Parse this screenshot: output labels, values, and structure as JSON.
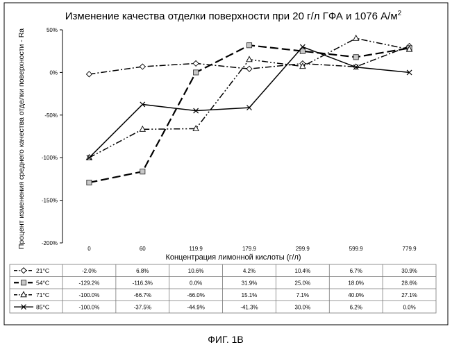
{
  "figure_caption": "ФИГ. 1В",
  "chart_data": {
    "type": "line",
    "title_main": "Изменение качества отделки поверхности при 20 г/л ГФА и 1076 А/м",
    "title_sup": "2",
    "xlabel": "Концентрация лимонной кислоты (г/л)",
    "ylabel": "Процент изменения среднего качества отделки поверхности - Ra",
    "ylim": [
      -200,
      50
    ],
    "yticks": [
      50,
      0,
      -50,
      -100,
      -150,
      -200
    ],
    "ytick_labels": [
      "50%",
      "0%",
      "-50%",
      "-100%",
      "-150%",
      "-200%"
    ],
    "categories": [
      "0",
      "60",
      "119.9",
      "179.9",
      "299.9",
      "599.9",
      "779.9"
    ],
    "grid": false,
    "legend": "data-table-below",
    "series": [
      {
        "name": "21°C",
        "marker": "diamond",
        "dash": "dashdot",
        "x": [
          0,
          60,
          119.9,
          179.9,
          299.9,
          599.9,
          779.9
        ],
        "values": [
          -2.0,
          6.8,
          10.6,
          4.2,
          10.4,
          6.7,
          30.9
        ],
        "labels": [
          "-2.0%",
          "6.8%",
          "10.6%",
          "4.2%",
          "10.4%",
          "6.7%",
          "30.9%"
        ]
      },
      {
        "name": "54°C",
        "marker": "square",
        "dash": "longdash",
        "x": [
          0,
          60,
          119.9,
          179.9,
          299.9,
          599.9,
          779.9
        ],
        "values": [
          -129.2,
          -116.3,
          0.0,
          31.9,
          25.0,
          18.0,
          28.6
        ],
        "labels": [
          "-129.2%",
          "-116.3%",
          "0.0%",
          "31.9%",
          "25.0%",
          "18.0%",
          "28.6%"
        ]
      },
      {
        "name": "71°C",
        "marker": "triangle",
        "dash": "dashdotdot",
        "x": [
          0,
          60,
          119.9,
          179.9,
          299.9,
          599.9,
          779.9
        ],
        "values": [
          -100.0,
          -66.7,
          -66.0,
          15.1,
          7.1,
          40.0,
          27.1
        ],
        "labels": [
          "-100.0%",
          "-66.7%",
          "-66.0%",
          "15.1%",
          "7.1%",
          "40.0%",
          "27.1%"
        ]
      },
      {
        "name": "85°C",
        "marker": "x",
        "dash": "solid",
        "x": [
          0,
          60,
          119.9,
          179.9,
          299.9,
          599.9,
          779.9
        ],
        "values": [
          -100.0,
          -37.5,
          -44.9,
          -41.3,
          30.0,
          6.2,
          0.0
        ],
        "labels": [
          "-100.0%",
          "-37.5%",
          "-44.9%",
          "-41.3%",
          "30.0%",
          "6.2%",
          "0.0%"
        ]
      }
    ]
  }
}
